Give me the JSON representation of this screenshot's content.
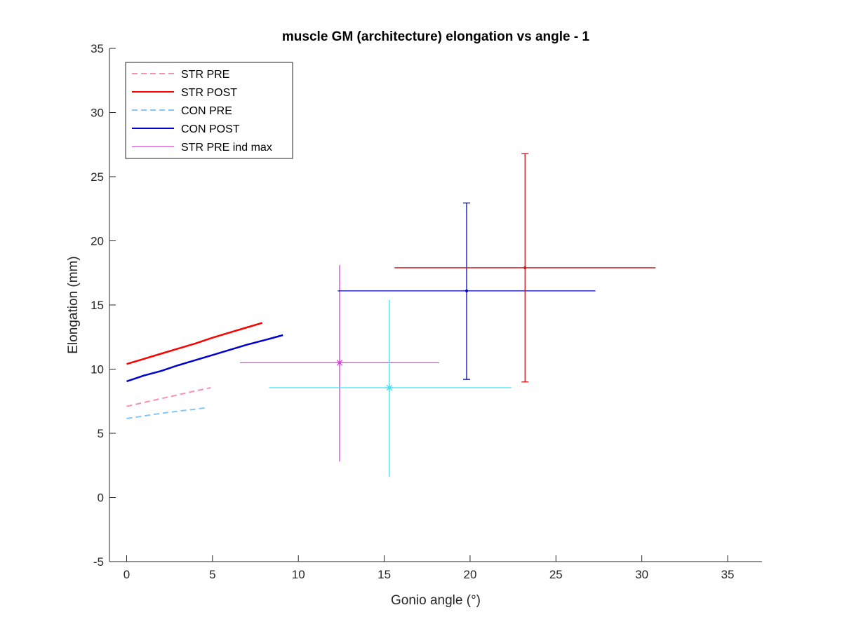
{
  "chart_data": {
    "type": "line",
    "title": "muscle GM (architecture) elongation vs angle - 1",
    "xlabel": "Gonio angle (°)",
    "ylabel": "Elongation (mm)",
    "xlim": [
      -1,
      37
    ],
    "ylim": [
      -5,
      35
    ],
    "xticks": [
      0,
      5,
      10,
      15,
      20,
      25,
      30,
      35
    ],
    "yticks": [
      -5,
      0,
      5,
      10,
      15,
      20,
      25,
      30,
      35
    ],
    "grid": false,
    "legend_position": "top-left",
    "series": [
      {
        "name": "STR PRE",
        "color": "#f592b0",
        "dash": "dashed",
        "width": 2,
        "x": [
          0,
          1,
          2,
          3,
          4,
          4.9
        ],
        "y": [
          7.1,
          7.4,
          7.7,
          8.0,
          8.3,
          8.55
        ]
      },
      {
        "name": "STR POST",
        "color": "#ff0000",
        "dash": "solid",
        "width": 2.5,
        "x": [
          0,
          1,
          2,
          3,
          4,
          5,
          6,
          7,
          7.9
        ],
        "y": [
          10.4,
          10.8,
          11.2,
          11.6,
          12.0,
          12.45,
          12.85,
          13.25,
          13.6
        ]
      },
      {
        "name": "CON PRE",
        "color": "#86c6f4",
        "dash": "dashed",
        "width": 2,
        "x": [
          0,
          1,
          2,
          3,
          4,
          4.7
        ],
        "y": [
          6.15,
          6.35,
          6.55,
          6.72,
          6.88,
          7.0
        ]
      },
      {
        "name": "CON POST",
        "color": "#0000d0",
        "dash": "solid",
        "width": 2.5,
        "x": [
          0,
          1,
          2,
          3,
          4,
          5,
          6,
          7,
          8,
          9.1
        ],
        "y": [
          9.05,
          9.5,
          9.85,
          10.3,
          10.7,
          11.1,
          11.5,
          11.9,
          12.25,
          12.65
        ]
      }
    ],
    "errorbars": [
      {
        "name": "STR PRE ind max",
        "color": "#e040e0",
        "marker": "asterisk",
        "x": 12.4,
        "y": 10.5,
        "xmin": 6.6,
        "xmax": 18.2,
        "ymin": 2.8,
        "ymax": 18.1,
        "ycap": false
      },
      {
        "color": "#3ee0f0",
        "marker": "asterisk",
        "x": 15.3,
        "y": 8.55,
        "xmin": 8.3,
        "xmax": 22.4,
        "ymin": 1.6,
        "ymax": 15.4,
        "ycap": false
      },
      {
        "color": "#0000c0",
        "marker": "dot",
        "x": 19.8,
        "y": 16.1,
        "xmin": 12.3,
        "xmax": 27.3,
        "ymin": 9.2,
        "ymax": 22.95,
        "ycap": true
      },
      {
        "color": "#d01010",
        "marker": "dot",
        "x": 23.2,
        "y": 17.9,
        "xmin": 15.6,
        "xmax": 30.8,
        "ymin": 9.0,
        "ymax": 26.8,
        "ycap": true
      }
    ],
    "legend": [
      {
        "label": "STR PRE",
        "color": "#f592b0",
        "dash": "dashed"
      },
      {
        "label": "STR POST",
        "color": "#ff0000",
        "dash": "solid"
      },
      {
        "label": "CON PRE",
        "color": "#86c6f4",
        "dash": "dashed"
      },
      {
        "label": "CON POST",
        "color": "#0000d0",
        "dash": "solid"
      },
      {
        "label": "STR PRE ind max",
        "color": "#e040e0",
        "dash": "solid"
      }
    ]
  }
}
